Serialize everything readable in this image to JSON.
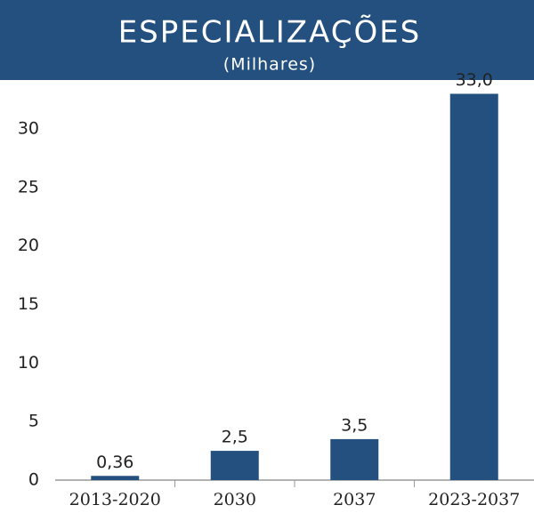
{
  "chart_data": {
    "type": "bar",
    "title": "ESPECIALIZAÇÕES",
    "subtitle": "(Milhares)",
    "categories": [
      "2013-2020",
      "2030",
      "2037",
      "2023-2037"
    ],
    "values": [
      0.36,
      2.5,
      3.5,
      33.0
    ],
    "value_labels": [
      "0,36",
      "2,5",
      "3,5",
      "33,0"
    ],
    "color": "#23507f",
    "header_color": "#23507f",
    "ylim": [
      0,
      33
    ],
    "yticks": [
      0,
      5,
      10,
      15,
      20,
      25,
      30
    ],
    "grid": false
  }
}
